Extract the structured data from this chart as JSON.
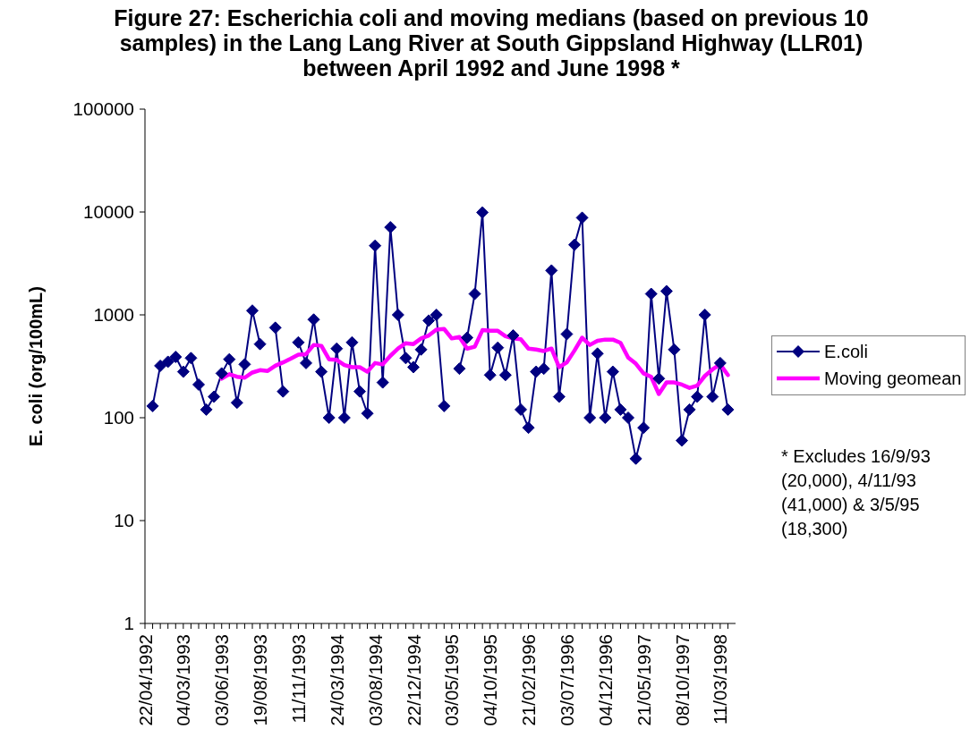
{
  "chart_data": {
    "type": "line",
    "title": "Figure 27: Escherichia coli and moving medians (based on previous 10 samples) in the Lang Lang River at South Gippsland Highway (LLR01) between April 1992 and June 1998 *",
    "ylabel": "E. coli (org/100mL)",
    "annotations": [
      "* Excludes 16/9/93 (20,000), 4/11/93 (41,000) & 3/5/95 (18,300)"
    ],
    "categories": [
      "22/04/1992",
      null,
      null,
      null,
      null,
      "04/03/1993",
      null,
      null,
      null,
      null,
      "03/06/1993",
      null,
      null,
      null,
      null,
      "19/08/1993",
      null,
      null,
      null,
      null,
      "11/11/1993",
      null,
      null,
      null,
      null,
      "24/03/1994",
      null,
      null,
      null,
      null,
      "03/08/1994",
      null,
      null,
      null,
      null,
      "22/12/1994",
      null,
      null,
      null,
      null,
      "03/05/1995",
      null,
      null,
      null,
      null,
      "04/10/1995",
      null,
      null,
      null,
      null,
      "21/02/1996",
      null,
      null,
      null,
      null,
      "03/07/1996",
      null,
      null,
      null,
      null,
      "04/12/1996",
      null,
      null,
      null,
      null,
      "21/05/1997",
      null,
      null,
      null,
      null,
      "08/10/1997",
      null,
      null,
      null,
      null,
      "11/03/1998",
      null
    ],
    "series": [
      {
        "name": "E.coli",
        "color": "#000080",
        "values": [
          null,
          130,
          320,
          350,
          390,
          280,
          380,
          210,
          120,
          160,
          270,
          370,
          140,
          330,
          1100,
          520,
          null,
          750,
          180,
          null,
          540,
          340,
          900,
          280,
          100,
          470,
          100,
          540,
          180,
          110,
          4700,
          220,
          7100,
          1000,
          380,
          310,
          460,
          880,
          1000,
          130,
          null,
          300,
          600,
          1600,
          9900,
          260,
          480,
          260,
          630,
          120,
          80,
          280,
          300,
          2700,
          160,
          650,
          4800,
          8800,
          100,
          420,
          100,
          280,
          120,
          100,
          40,
          80,
          1600,
          240,
          1700,
          460,
          60,
          120,
          160,
          1000,
          160,
          340,
          120
        ]
      },
      {
        "name": "Moving geomean",
        "color": "#ff00ff",
        "marker": "none",
        "values": [
          null,
          null,
          null,
          null,
          null,
          null,
          null,
          null,
          null,
          null,
          240,
          265,
          250,
          245,
          275,
          290,
          285,
          320,
          345,
          375,
          410,
          415,
          510,
          500,
          370,
          365,
          325,
          310,
          310,
          280,
          340,
          330,
          400,
          470,
          530,
          520,
          590,
          630,
          720,
          730,
          590,
          610,
          470,
          490,
          710,
          700,
          700,
          620,
          590,
          580,
          470,
          460,
          445,
          470,
          310,
          345,
          450,
          600,
          510,
          560,
          575,
          575,
          535,
          385,
          335,
          270,
          250,
          170,
          220,
          220,
          210,
          195,
          205,
          255,
          295,
          330,
          260
        ]
      }
    ],
    "ylim": [
      1,
      100000
    ],
    "yticks": [
      1,
      10,
      100,
      1000,
      10000,
      100000
    ],
    "log": "y",
    "marker": "diamond",
    "legend": "right"
  }
}
